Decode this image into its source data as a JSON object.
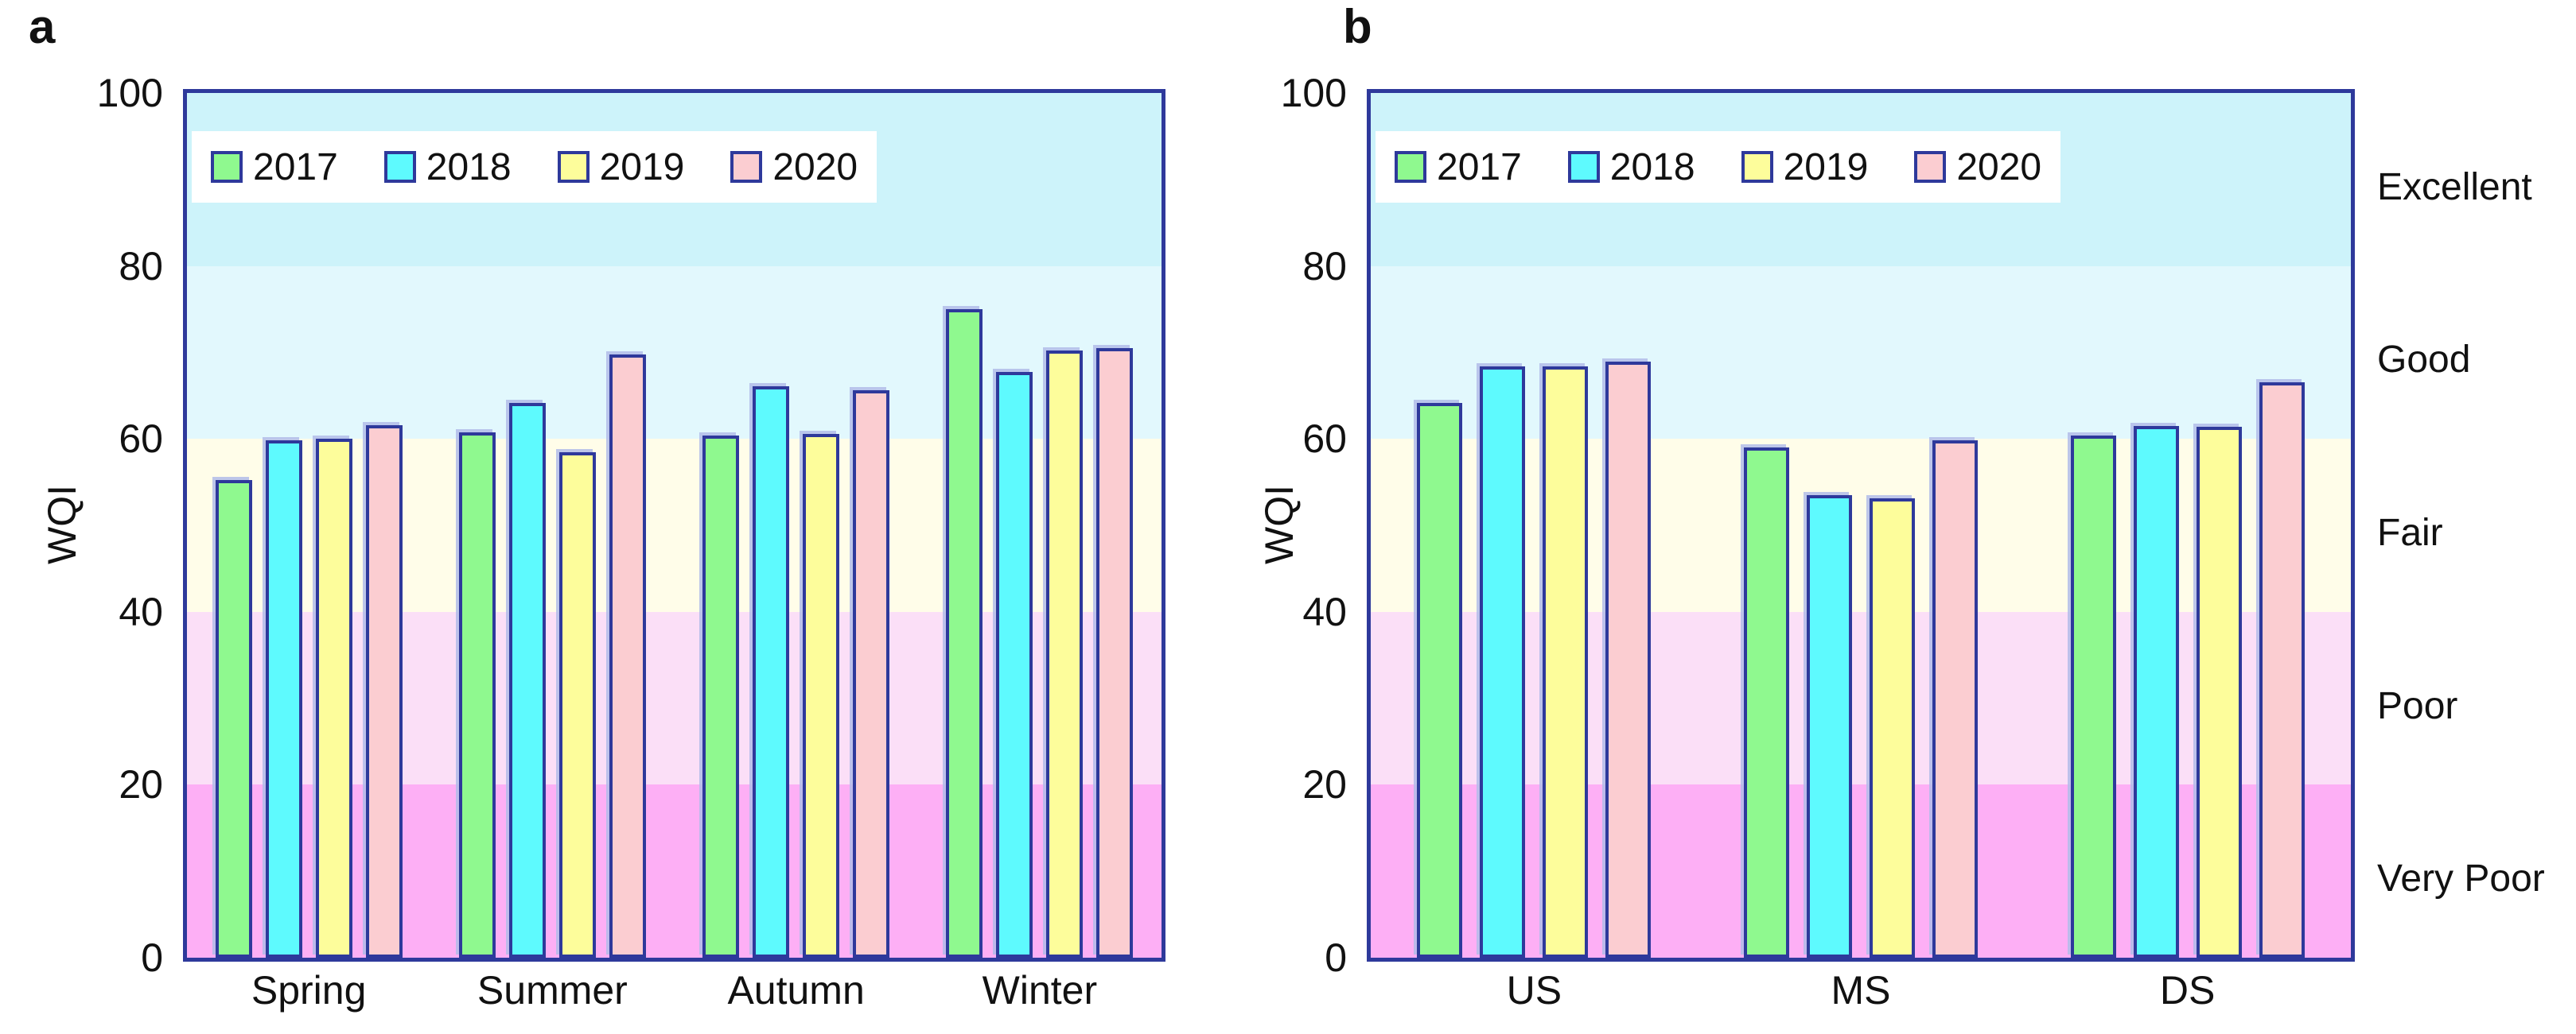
{
  "axis": {
    "ylabel": "WQI",
    "ticks": [
      0,
      20,
      40,
      60,
      80,
      100
    ],
    "ylim": [
      0,
      100
    ]
  },
  "legend_years": [
    "2017",
    "2018",
    "2019",
    "2020"
  ],
  "series_colors": {
    "2017": "#8FF98F",
    "2018": "#5EFAFE",
    "2019": "#FDFD9B",
    "2020": "#FBCDD1"
  },
  "style": {
    "bar_border": "#2E399B",
    "bar_highlight": "#B2BCE9",
    "plot_border": "#2E399B",
    "legend_background": "#FFFFFF"
  },
  "quality_bands": [
    {
      "label": "Excellent",
      "range": [
        80,
        100
      ],
      "color": "#CDF3FA"
    },
    {
      "label": "Good",
      "range": [
        60,
        80
      ],
      "color": "#E2F8FD"
    },
    {
      "label": "Fair",
      "range": [
        40,
        60
      ],
      "color": "#FFFDE9"
    },
    {
      "label": "Poor",
      "range": [
        20,
        40
      ],
      "color": "#FBDFF7"
    },
    {
      "label": "Very Poor",
      "range": [
        0,
        20
      ],
      "color": "#FDAFF5"
    }
  ],
  "chart_data": [
    {
      "type": "bar",
      "panel_label": "a",
      "ylabel": "WQI",
      "xlabel": "",
      "ylim": [
        0,
        100
      ],
      "grid": false,
      "legend_position": "top-left",
      "background_bands": "WQI quality classes (Excellent/Good/Fair/Poor/Very Poor)",
      "categories": [
        "Spring",
        "Summer",
        "Autumn",
        "Winter"
      ],
      "series": [
        {
          "name": "2017",
          "color": "#8FF98F",
          "values": [
            55.2,
            60.8,
            60.4,
            75.0
          ]
        },
        {
          "name": "2018",
          "color": "#5EFAFE",
          "values": [
            59.8,
            64.2,
            66.1,
            67.7
          ]
        },
        {
          "name": "2019",
          "color": "#FDFD9B",
          "values": [
            60.0,
            58.5,
            60.6,
            70.2
          ]
        },
        {
          "name": "2020",
          "color": "#FBCDD1",
          "values": [
            61.6,
            69.8,
            65.6,
            70.5
          ]
        }
      ]
    },
    {
      "type": "bar",
      "panel_label": "b",
      "ylabel": "WQI",
      "xlabel": "",
      "ylim": [
        0,
        100
      ],
      "grid": false,
      "legend_position": "top-left",
      "background_bands": "WQI quality classes (Excellent/Good/Fair/Poor/Very Poor)",
      "categories": [
        "US",
        "MS",
        "DS"
      ],
      "series": [
        {
          "name": "2017",
          "color": "#8FF98F",
          "values": [
            64.2,
            59.0,
            60.4
          ]
        },
        {
          "name": "2018",
          "color": "#5EFAFE",
          "values": [
            68.4,
            53.5,
            61.5
          ]
        },
        {
          "name": "2019",
          "color": "#FDFD9B",
          "values": [
            68.4,
            53.1,
            61.4
          ]
        },
        {
          "name": "2020",
          "color": "#FBCDD1",
          "values": [
            68.9,
            59.8,
            66.5
          ]
        }
      ]
    }
  ]
}
